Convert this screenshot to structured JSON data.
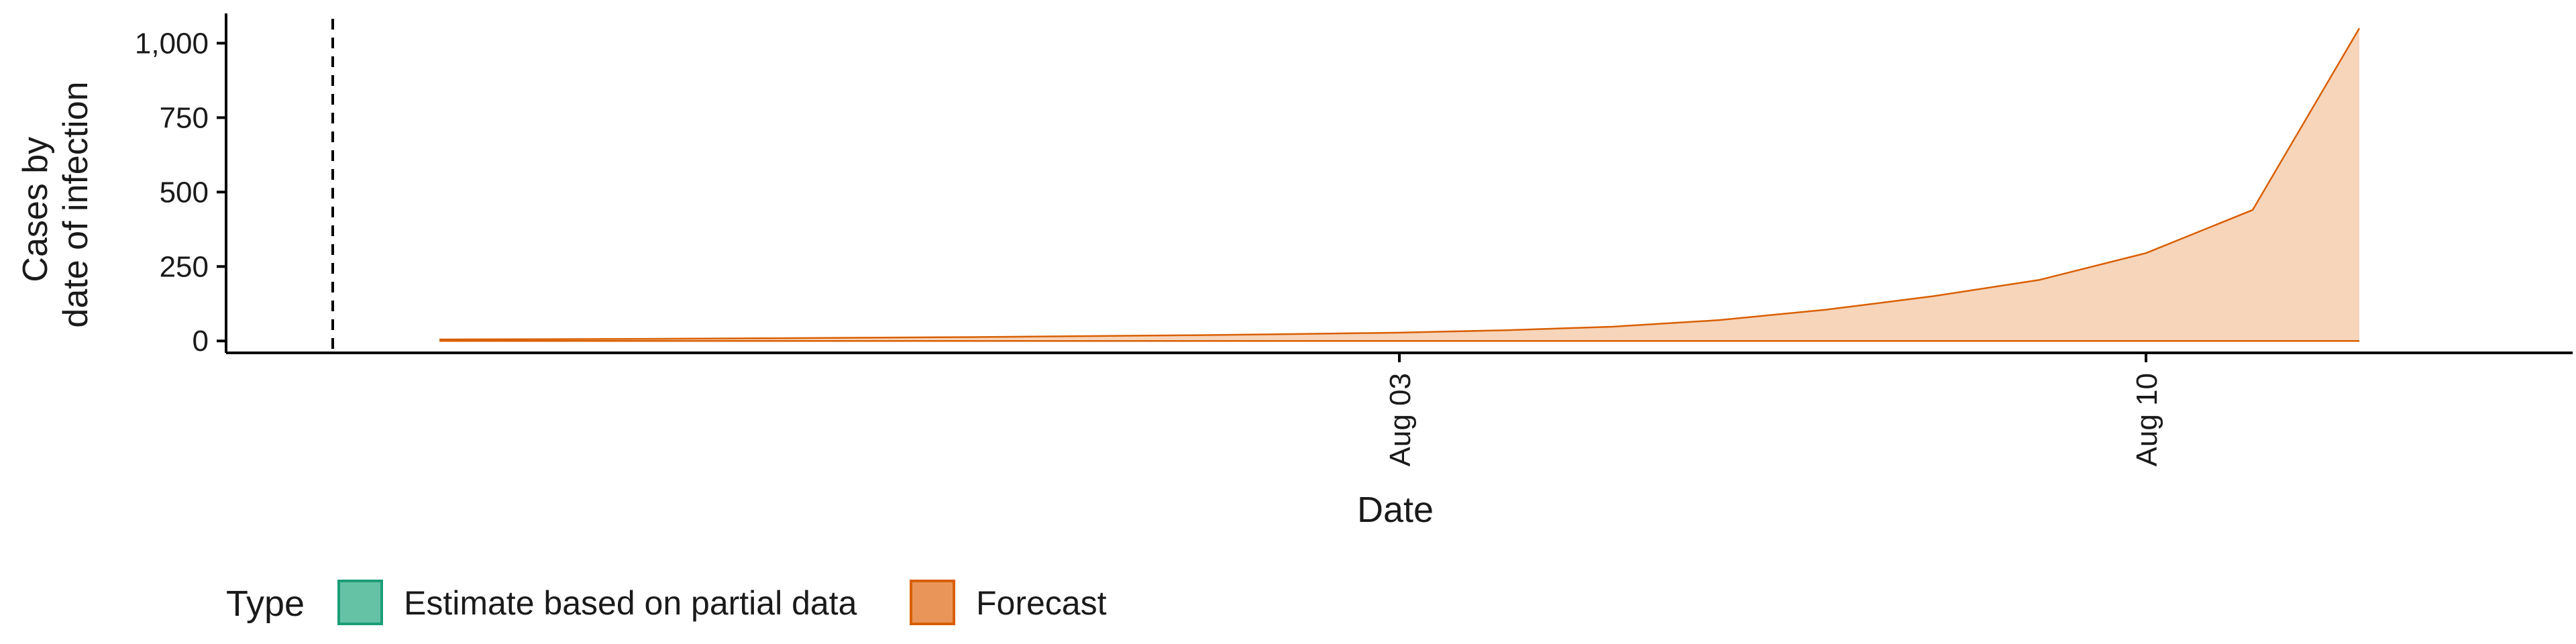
{
  "chart_data": {
    "type": "area",
    "xlabel": "Date",
    "ylabel_lines": [
      "Cases by",
      "date of infection"
    ],
    "y_ticks": [
      0,
      250,
      500,
      750,
      1000
    ],
    "y_tick_labels": [
      "0",
      "250",
      "500",
      "750",
      "1,000"
    ],
    "ylim": [
      -40,
      1100
    ],
    "x_range": [
      "2020-07-23",
      "2020-08-14"
    ],
    "x_ticks": [
      "2020-08-03",
      "2020-08-10"
    ],
    "x_tick_labels": [
      "Aug 03",
      "Aug 10"
    ],
    "vline_date": "2020-07-24",
    "series": [
      {
        "name": "Forecast",
        "color": "#d95f02",
        "fill": "#f6d5bb",
        "x": [
          "2020-07-25",
          "2020-07-26",
          "2020-07-27",
          "2020-07-28",
          "2020-07-29",
          "2020-07-30",
          "2020-07-31",
          "2020-08-01",
          "2020-08-02",
          "2020-08-03",
          "2020-08-04",
          "2020-08-05",
          "2020-08-06",
          "2020-08-07",
          "2020-08-08",
          "2020-08-09",
          "2020-08-10",
          "2020-08-11",
          "2020-08-12"
        ],
        "y": [
          5,
          6,
          7,
          9,
          11,
          13,
          16,
          19,
          23,
          28,
          36,
          48,
          70,
          105,
          150,
          205,
          295,
          440,
          1050
        ]
      }
    ]
  },
  "legend": {
    "title": "Type",
    "items": [
      {
        "label": "Estimate based on partial data",
        "fill": "#66c2a5",
        "stroke": "#1b9e77"
      },
      {
        "label": "Forecast",
        "fill": "#e9955a",
        "stroke": "#d95f02"
      }
    ]
  }
}
